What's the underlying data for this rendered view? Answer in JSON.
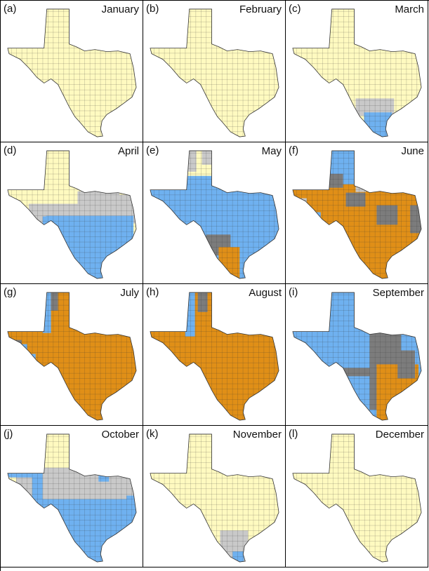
{
  "colors": {
    "none": "#FFFAC0",
    "light_gray": "#C9C9C9",
    "dark_gray": "#7C7C7C",
    "blue": "#6FB1F0",
    "orange": "#E08F17",
    "county_line": "#333333"
  },
  "panels": [
    {
      "letter": "(a)",
      "month": "January"
    },
    {
      "letter": "(b)",
      "month": "February"
    },
    {
      "letter": "(c)",
      "month": "March"
    },
    {
      "letter": "(d)",
      "month": "April"
    },
    {
      "letter": "(e)",
      "month": "May"
    },
    {
      "letter": "(f)",
      "month": "June"
    },
    {
      "letter": "(g)",
      "month": "July"
    },
    {
      "letter": "(h)",
      "month": "August"
    },
    {
      "letter": "(i)",
      "month": "September"
    },
    {
      "letter": "(j)",
      "month": "October"
    },
    {
      "letter": "(k)",
      "month": "November"
    },
    {
      "letter": "(l)",
      "month": "December"
    }
  ]
}
